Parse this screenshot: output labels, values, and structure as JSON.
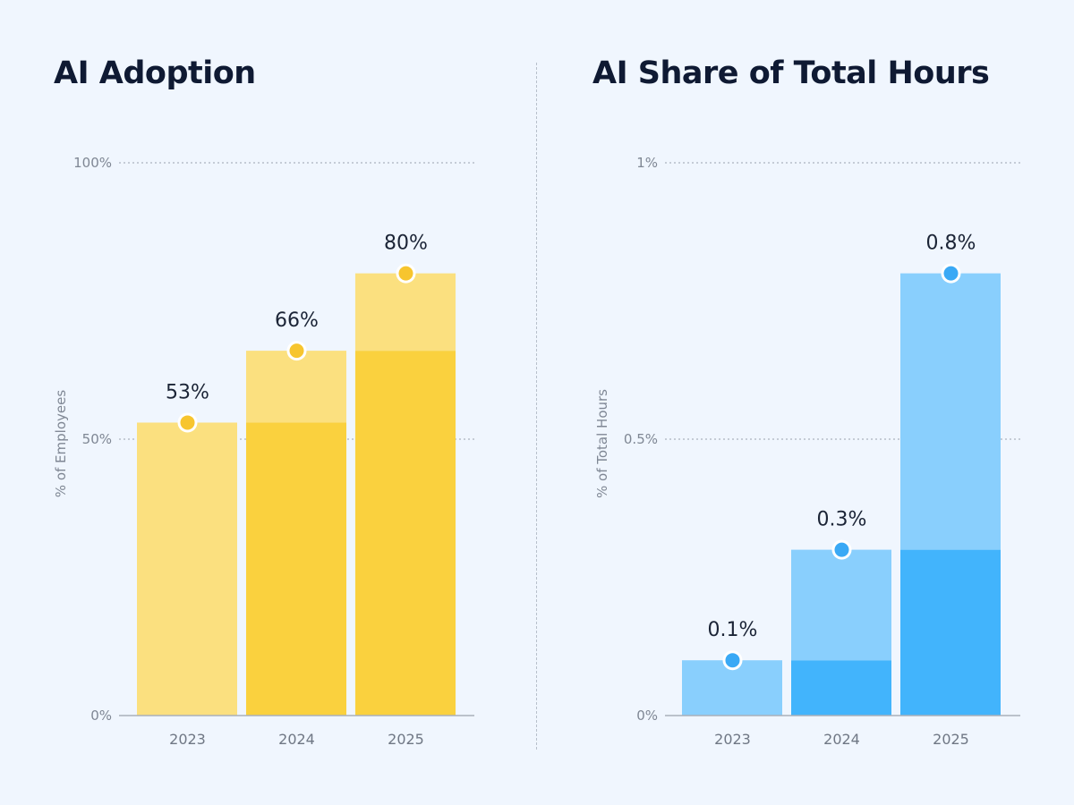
{
  "chart_data": [
    {
      "type": "bar",
      "title": "AI Adoption",
      "ylabel": "% of Employees",
      "xlabel": "",
      "ylim": [
        0,
        100
      ],
      "yticks": [
        {
          "value": 0,
          "label": "0%"
        },
        {
          "value": 50,
          "label": "50%"
        },
        {
          "value": 100,
          "label": "100%"
        }
      ],
      "gridlines_at": [
        50,
        100
      ],
      "categories": [
        "2023",
        "2024",
        "2025"
      ],
      "values": [
        53,
        66,
        80
      ],
      "labels": [
        "53%",
        "66%",
        "80%"
      ],
      "colors": {
        "base": "#fad13e",
        "increment": "#fbe07f",
        "marker": "#f7c52e"
      }
    },
    {
      "type": "bar",
      "title": "AI Share of Total Hours",
      "ylabel": "% of Total Hours",
      "xlabel": "",
      "ylim": [
        0,
        1
      ],
      "yticks": [
        {
          "value": 0,
          "label": "0%"
        },
        {
          "value": 0.5,
          "label": "0.5%"
        },
        {
          "value": 1,
          "label": "1%"
        }
      ],
      "gridlines_at": [
        0.5,
        1
      ],
      "categories": [
        "2023",
        "2024",
        "2025"
      ],
      "values": [
        0.1,
        0.3,
        0.8
      ],
      "labels": [
        "0.1%",
        "0.3%",
        "0.8%"
      ],
      "colors": {
        "base": "#42b4fc",
        "increment": "#89cffd",
        "marker": "#3aa9f5"
      }
    }
  ]
}
